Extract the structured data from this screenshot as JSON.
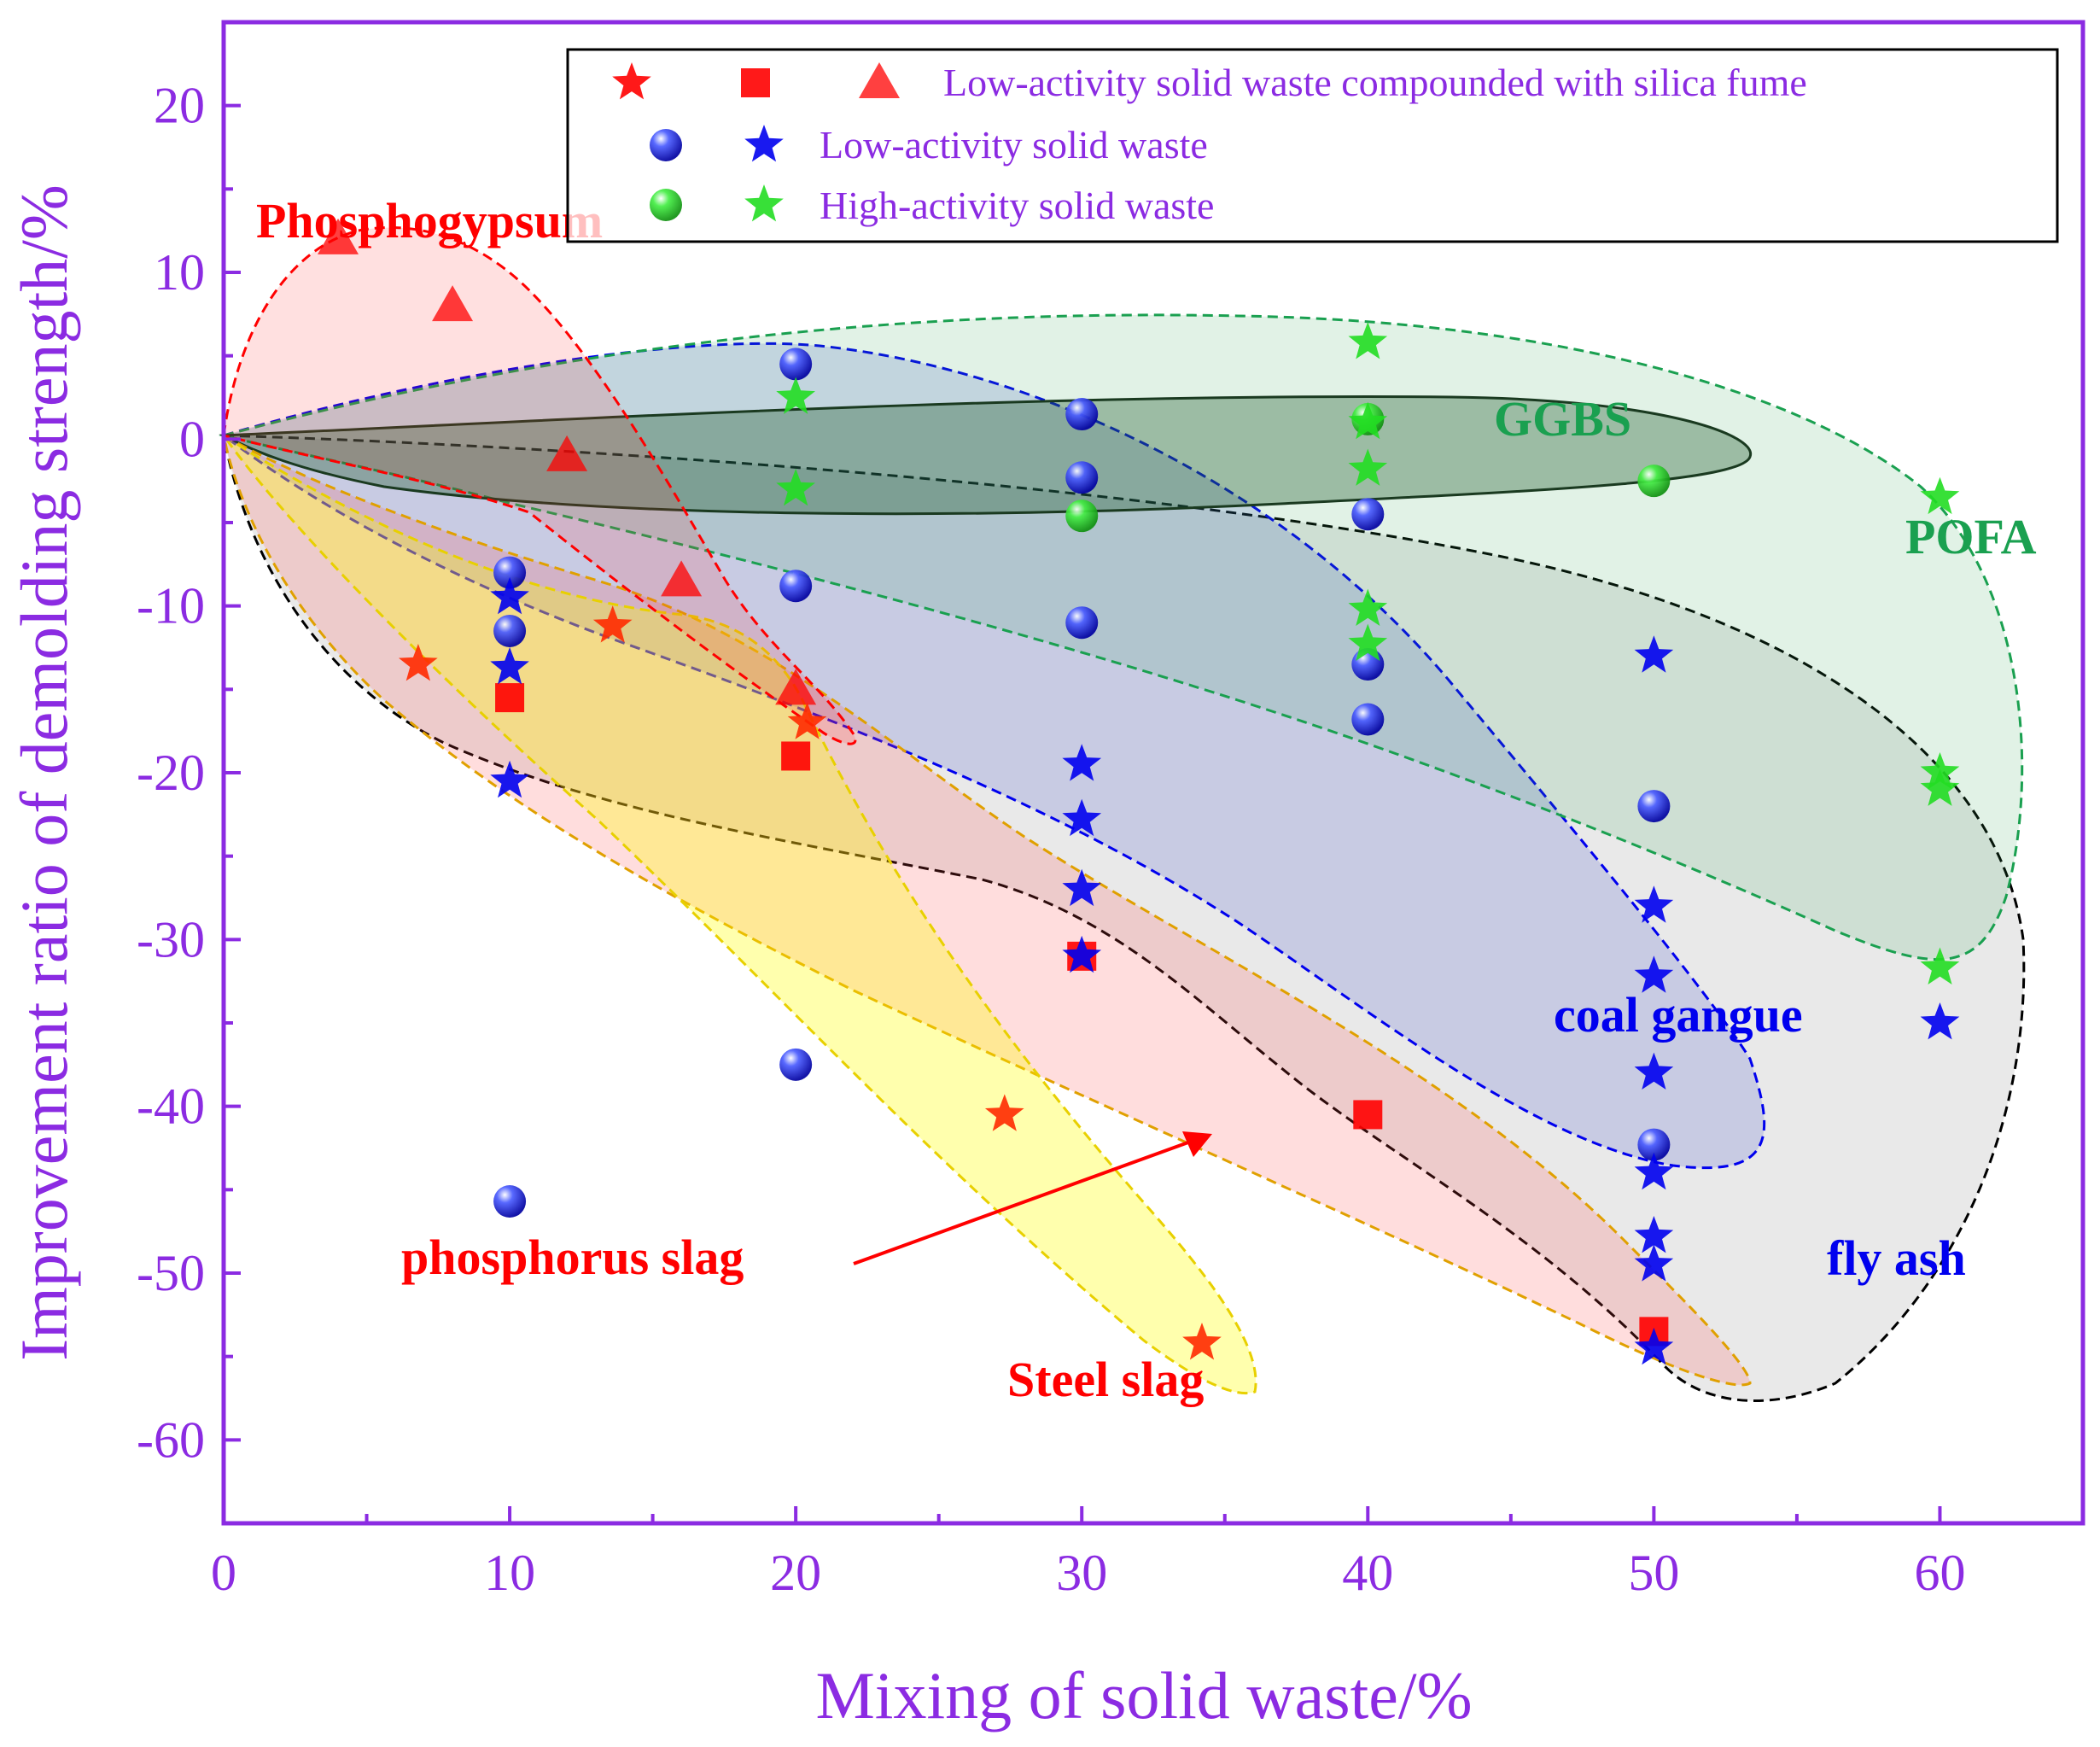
{
  "chart_data": {
    "type": "scatter",
    "xlabel": "Mixing of solid waste/%",
    "ylabel": "Improvement ratio of demolding strength/%",
    "xlim": [
      0,
      65
    ],
    "ylim": [
      -65,
      25
    ],
    "xticks": [
      0,
      10,
      20,
      30,
      40,
      50,
      60
    ],
    "yticks": [
      20,
      10,
      0,
      -10,
      -20,
      -30,
      -40,
      -50,
      -60
    ],
    "xtick_labels": [
      "0",
      "10",
      "20",
      "30",
      "40",
      "50",
      "60"
    ],
    "ytick_labels": [
      "20",
      "10",
      "0",
      "-10",
      "-20",
      "-30",
      "-40",
      "-50",
      "-60"
    ],
    "grid": false,
    "legend_position": "top-right",
    "legend": [
      {
        "label": "Low-activity solid waste compounded with silica fume",
        "markers": [
          "red-star",
          "red-square",
          "red-triangle"
        ]
      },
      {
        "label": "Low-activity solid waste",
        "markers": [
          "blue-sphere",
          "blue-star"
        ]
      },
      {
        "label": "High-activity solid waste",
        "markers": [
          "green-sphere",
          "green-star"
        ]
      }
    ],
    "series": [
      {
        "name": "Phosphogypsum + silica fume",
        "marker": "triangle",
        "color": "#ff0000",
        "points": [
          [
            4,
            12
          ],
          [
            8,
            8
          ],
          [
            12,
            -1
          ],
          [
            16,
            -8.5
          ],
          [
            20,
            -15
          ]
        ]
      },
      {
        "name": "Steel slag + silica fume",
        "marker": "star",
        "color": "#ff2a00",
        "points": [
          [
            6.8,
            -13.5
          ],
          [
            13.6,
            -11.2
          ],
          [
            20.4,
            -17
          ],
          [
            27.3,
            -40.5
          ],
          [
            34.2,
            -54.2
          ]
        ]
      },
      {
        "name": "Phosphorus slag + silica fume",
        "marker": "square",
        "color": "#ff0000",
        "points": [
          [
            10,
            -15.5
          ],
          [
            20,
            -19
          ],
          [
            30,
            -31
          ],
          [
            40,
            -40.5
          ],
          [
            50,
            -53.5
          ]
        ]
      },
      {
        "name": "Low-activity solid waste (spheres)",
        "marker": "sphere",
        "color": "#0000ee",
        "points": [
          [
            10,
            -8
          ],
          [
            10,
            -11.5
          ],
          [
            10,
            -45.7
          ],
          [
            20,
            4.5
          ],
          [
            20,
            -8.8
          ],
          [
            20,
            -37.5
          ],
          [
            30,
            1.5
          ],
          [
            30,
            -2.3
          ],
          [
            30,
            -11
          ],
          [
            40,
            -4.5
          ],
          [
            40,
            -13.5
          ],
          [
            40,
            -16.8
          ],
          [
            50,
            -22
          ],
          [
            50,
            -42.3
          ]
        ]
      },
      {
        "name": "Low-activity solid waste (stars)",
        "marker": "star",
        "color": "#0000ee",
        "points": [
          [
            10,
            -9.5
          ],
          [
            10,
            -13.7
          ],
          [
            10,
            -20.5
          ],
          [
            30,
            -19.5
          ],
          [
            30,
            -22.8
          ],
          [
            30,
            -27
          ],
          [
            30,
            -31
          ],
          [
            50,
            -13
          ],
          [
            50,
            -28
          ],
          [
            50,
            -32.2
          ],
          [
            50,
            -38
          ],
          [
            50,
            -44
          ],
          [
            50,
            -47.8
          ],
          [
            50,
            -49.5
          ],
          [
            50,
            -54.5
          ],
          [
            60,
            -35
          ]
        ]
      },
      {
        "name": "High-activity solid waste (spheres)",
        "marker": "sphere",
        "color": "#22dd22",
        "points": [
          [
            30,
            -4.6
          ],
          [
            40,
            1.2
          ],
          [
            50,
            -2.5
          ]
        ]
      },
      {
        "name": "High-activity solid waste (stars)",
        "marker": "star",
        "color": "#22dd22",
        "points": [
          [
            20,
            2.5
          ],
          [
            20,
            -3
          ],
          [
            40,
            5.8
          ],
          [
            40,
            1
          ],
          [
            40,
            -1.8
          ],
          [
            40,
            -10.2
          ],
          [
            40,
            -12.3
          ],
          [
            60,
            -3.5
          ],
          [
            60,
            -20
          ],
          [
            60,
            -21
          ],
          [
            60,
            -31.7
          ]
        ]
      }
    ],
    "annotations": [
      {
        "text": "Phosphogypsum",
        "color": "#ff0000"
      },
      {
        "text": "GGBS",
        "color": "#1aa050"
      },
      {
        "text": "POFA",
        "color": "#1aa050"
      },
      {
        "text": "coal gangue",
        "color": "#0000ee"
      },
      {
        "text": "fly ash",
        "color": "#0000ee"
      },
      {
        "text": "phosphorus slag",
        "color": "#ff0000"
      },
      {
        "text": "Steel slag",
        "color": "#ff0000"
      }
    ]
  }
}
